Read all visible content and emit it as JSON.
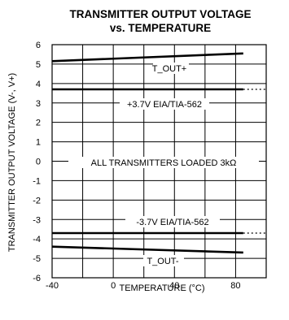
{
  "chart_data": {
    "type": "line",
    "title_line1": "TRANSMITTER OUTPUT VOLTAGE",
    "title_line2": "vs. TEMPERATURE",
    "xlabel": "TEMPERATURE (°C)",
    "ylabel": "TRANSMITTER OUTPUT VOLTAGE (V-, V+)",
    "xlim": [
      -40,
      100
    ],
    "ylim": [
      -6,
      6
    ],
    "xticks": [
      -40,
      0,
      40,
      80
    ],
    "yticks": [
      6,
      5,
      4,
      3,
      2,
      1,
      0,
      -1,
      -2,
      -3,
      -4,
      -5,
      -6
    ],
    "grid": true,
    "series": [
      {
        "name": "T_OUT+",
        "x": [
          -40,
          85
        ],
        "y": [
          5.15,
          5.55
        ],
        "style": "solid"
      },
      {
        "name": "T_OUT-",
        "x": [
          -40,
          85
        ],
        "y": [
          -4.4,
          -4.7
        ],
        "style": "solid"
      },
      {
        "name": "+3.7V EIA/TIA-562",
        "x": [
          -40,
          85
        ],
        "y": [
          3.7,
          3.7
        ],
        "style": "solid"
      },
      {
        "name": "+3.7V EIA/TIA-562 extension",
        "x": [
          85,
          100
        ],
        "y": [
          3.7,
          3.7
        ],
        "style": "dotted"
      },
      {
        "name": "-3.7V EIA/TIA-562",
        "x": [
          -40,
          85
        ],
        "y": [
          -3.7,
          -3.7
        ],
        "style": "solid"
      },
      {
        "name": "-3.7V EIA/TIA-562 extension",
        "x": [
          85,
          100
        ],
        "y": [
          -3.7,
          -3.7
        ],
        "style": "dotted"
      }
    ],
    "annotations": {
      "tout_plus": "T_OUT+",
      "spec_plus": "+3.7V EIA/TIA-562",
      "loaded": "ALL TRANSMITTERS LOADED 3kΩ",
      "spec_minus": "-3.7V EIA/TIA-562",
      "tout_minus": "T_OUT-"
    }
  }
}
